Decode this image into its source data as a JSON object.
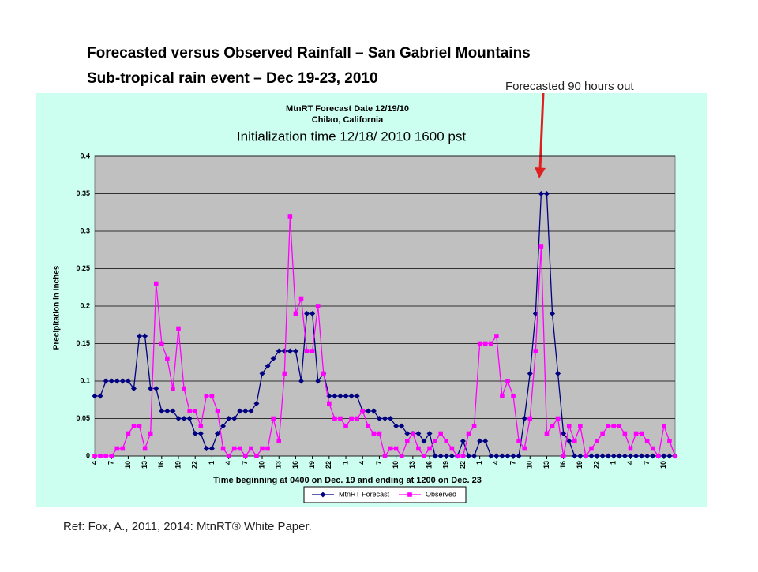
{
  "slide": {
    "title_lines": [
      "Forecasted versus Observed Rainfall – San Gabriel Mountains",
      "Sub-tropical rain event – Dec 19-23, 2010"
    ],
    "annotation": "Forecasted 90 hours out",
    "reference": "Ref: Fox, A.,  2011, 2014: MtnRT® White Paper."
  },
  "chart_data": {
    "type": "line",
    "title_lines": [
      "MtnRT Forecast Date 12/19/10",
      "Chilao, California"
    ],
    "subtitle": "Initialization time 12/18/ 2010 1600 pst",
    "x_label": "Time beginning at 0400 on Dec. 19 and ending at 1200 on Dec. 23",
    "y_label": "Precipitation in Inches",
    "ylim": [
      0,
      0.4
    ],
    "yticks": [
      0,
      0.05,
      0.1,
      0.15,
      0.2,
      0.25,
      0.3,
      0.35,
      0.4
    ],
    "grid": true,
    "legend": "bottom",
    "categories": [
      "4",
      null,
      null,
      "7",
      null,
      null,
      "10",
      null,
      null,
      "13",
      null,
      null,
      "16",
      null,
      null,
      "19",
      null,
      null,
      "22",
      null,
      null,
      "1",
      null,
      null,
      "4",
      null,
      null,
      "7",
      null,
      null,
      "10",
      null,
      null,
      "13",
      null,
      null,
      "16",
      null,
      null,
      "19",
      null,
      null,
      "22",
      null,
      null,
      "1",
      null,
      null,
      "4",
      null,
      null,
      "7",
      null,
      null,
      "10",
      null,
      null,
      "13",
      null,
      null,
      "16",
      null,
      null,
      "19",
      null,
      null,
      "22",
      null,
      null,
      "1",
      null,
      null,
      "4",
      null,
      null,
      "7",
      null,
      null,
      "10",
      null,
      null,
      "13",
      null,
      null,
      "16",
      null,
      null,
      "19",
      null,
      null,
      "22",
      null,
      null,
      "1",
      null,
      null,
      "4",
      null,
      null,
      "7",
      null,
      null,
      "10",
      null,
      null
    ],
    "series": [
      {
        "name": "MtnRT Forecast",
        "color": "#000080",
        "marker": "diamond",
        "values": [
          0.08,
          0.08,
          0.1,
          0.1,
          0.1,
          0.1,
          0.1,
          0.09,
          0.16,
          0.16,
          0.09,
          0.09,
          0.06,
          0.06,
          0.06,
          0.05,
          0.05,
          0.05,
          0.03,
          0.03,
          0.01,
          0.01,
          0.03,
          0.04,
          0.05,
          0.05,
          0.06,
          0.06,
          0.06,
          0.07,
          0.11,
          0.12,
          0.13,
          0.14,
          0.14,
          0.14,
          0.14,
          0.1,
          0.19,
          0.19,
          0.1,
          0.11,
          0.08,
          0.08,
          0.08,
          0.08,
          0.08,
          0.08,
          0.06,
          0.06,
          0.06,
          0.05,
          0.05,
          0.05,
          0.04,
          0.04,
          0.03,
          0.03,
          0.03,
          0.02,
          0.03,
          0,
          0,
          0,
          0,
          0,
          0.02,
          0,
          0,
          0.02,
          0.02,
          0,
          0,
          0,
          0,
          0,
          0,
          0.05,
          0.11,
          0.19,
          0.35,
          0.35,
          0.19,
          0.11,
          0.03,
          0.02,
          0,
          0,
          0,
          0,
          0,
          0,
          0,
          0,
          0,
          0,
          0,
          0,
          0,
          0,
          0,
          0,
          0,
          0,
          0
        ]
      },
      {
        "name": "Observed",
        "color": "#ff00ff",
        "marker": "square",
        "values": [
          0,
          0,
          0,
          0,
          0.01,
          0.01,
          0.03,
          0.04,
          0.04,
          0.01,
          0.03,
          0.23,
          0.15,
          0.13,
          0.09,
          0.17,
          0.09,
          0.06,
          0.06,
          0.04,
          0.08,
          0.08,
          0.06,
          0.01,
          0,
          0.01,
          0.01,
          0,
          0.01,
          0,
          0.01,
          0.01,
          0.05,
          0.02,
          0.11,
          0.32,
          0.19,
          0.21,
          0.14,
          0.14,
          0.2,
          0.11,
          0.07,
          0.05,
          0.05,
          0.04,
          0.05,
          0.05,
          0.06,
          0.04,
          0.03,
          0.03,
          0,
          0.01,
          0.01,
          0,
          0.02,
          0.03,
          0.01,
          0,
          0.01,
          0.02,
          0.03,
          0.02,
          0.01,
          0,
          0,
          0.03,
          0.04,
          0.15,
          0.15,
          0.15,
          0.16,
          0.08,
          0.1,
          0.08,
          0.02,
          0.01,
          0.05,
          0.14,
          0.28,
          0.03,
          0.04,
          0.05,
          0,
          0.04,
          0.02,
          0.04,
          0,
          0.01,
          0.02,
          0.03,
          0.04,
          0.04,
          0.04,
          0.03,
          0.01,
          0.03,
          0.03,
          0.02,
          0.01,
          0,
          0.04,
          0.02,
          0
        ]
      }
    ]
  }
}
